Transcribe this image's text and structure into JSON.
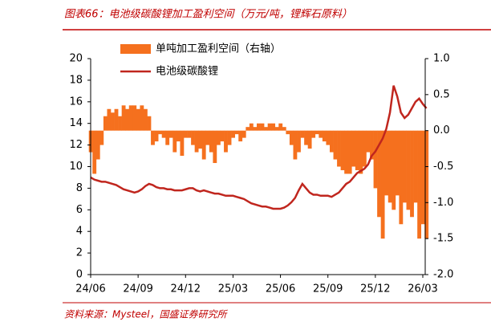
{
  "chart_data": {
    "type": "bar_line_dual_axis",
    "title": "图表66：电池级碳酸锂加工盈利空间（万元/吨，锂辉石原料）",
    "source": "资料来源：Mysteel，国盛证券研究所",
    "categories": [
      "24/06",
      null,
      null,
      null,
      null,
      null,
      null,
      null,
      null,
      null,
      null,
      null,
      null,
      "24/09",
      null,
      null,
      null,
      null,
      null,
      null,
      null,
      null,
      null,
      null,
      null,
      null,
      "24/12",
      null,
      null,
      null,
      null,
      null,
      null,
      null,
      null,
      null,
      null,
      null,
      null,
      "25/03",
      null,
      null,
      null,
      null,
      null,
      null,
      null,
      null,
      null,
      null,
      null,
      null,
      "25/06",
      null,
      null,
      null,
      null,
      null,
      null,
      null,
      null,
      null,
      null,
      null,
      null,
      "25/09",
      null,
      null,
      null,
      null,
      null,
      null,
      null,
      null,
      null,
      null,
      null,
      null,
      "25/12",
      null,
      null,
      null,
      null,
      null,
      null,
      null,
      null,
      null,
      null,
      null,
      null,
      "26/03",
      null
    ],
    "ylim": [
      0,
      20
    ],
    "yticks": [
      0,
      2,
      4,
      6,
      8,
      10,
      12,
      14,
      16,
      18,
      20
    ],
    "y2lim": [
      -2,
      1
    ],
    "y2ticks": [
      {
        "value": -2,
        "label": "-2.0"
      },
      -1.5,
      {
        "value": -1,
        "label": "-1.0"
      },
      -0.5,
      {
        "value": 0,
        "label": "0.0"
      },
      0.5,
      {
        "value": 1,
        "label": "1.0"
      }
    ],
    "legend": "top-left",
    "series": [
      {
        "name": "单吨加工盈利空间（右轴）",
        "type": "bar",
        "axis": "y2",
        "color": "#f5701e",
        "values": [
          -0.3,
          -0.6,
          -0.4,
          -0.2,
          0.2,
          0.3,
          0.25,
          0.3,
          0.2,
          0.35,
          0.3,
          0.35,
          0.35,
          0.3,
          0.35,
          0.3,
          0.2,
          -0.2,
          -0.15,
          -0.05,
          -0.1,
          -0.2,
          -0.1,
          -0.3,
          -0.15,
          -0.35,
          -0.1,
          -0.1,
          -0.2,
          -0.3,
          -0.25,
          -0.4,
          -0.2,
          -0.3,
          -0.45,
          -0.2,
          -0.15,
          -0.3,
          -0.2,
          -0.1,
          -0.05,
          -0.15,
          -0.1,
          0.05,
          0.1,
          0.05,
          0.1,
          0.1,
          0.05,
          0.1,
          0.1,
          0.05,
          0.1,
          0.05,
          -0.05,
          -0.2,
          -0.4,
          -0.3,
          -0.1,
          -0.2,
          -0.25,
          -0.1,
          -0.05,
          -0.1,
          -0.15,
          -0.2,
          -0.3,
          -0.4,
          -0.5,
          -0.55,
          -0.6,
          -0.6,
          -0.5,
          -0.55,
          -0.6,
          -0.5,
          -0.3,
          -0.4,
          -0.8,
          -1.2,
          -1.5,
          -0.9,
          -1.0,
          -1.1,
          -0.9,
          -1.3,
          -1.0,
          -1.1,
          -1.2,
          -1.0,
          -1.5,
          -1.3,
          -1.5
        ]
      },
      {
        "name": "电池级碳酸锂",
        "type": "line",
        "color": "#c0261e",
        "values": [
          9.0,
          8.8,
          8.7,
          8.6,
          8.6,
          8.5,
          8.4,
          8.3,
          8.1,
          7.9,
          7.8,
          7.7,
          7.6,
          7.7,
          7.9,
          8.2,
          8.4,
          8.3,
          8.1,
          8.0,
          8.0,
          7.9,
          7.9,
          7.8,
          7.8,
          7.8,
          7.9,
          8.0,
          8.0,
          7.8,
          7.7,
          7.8,
          7.7,
          7.6,
          7.5,
          7.5,
          7.4,
          7.3,
          7.3,
          7.3,
          7.2,
          7.1,
          7.0,
          6.8,
          6.6,
          6.5,
          6.4,
          6.3,
          6.3,
          6.2,
          6.1,
          6.1,
          6.1,
          6.2,
          6.4,
          6.7,
          7.1,
          7.8,
          8.4,
          8.0,
          7.6,
          7.4,
          7.4,
          7.3,
          7.3,
          7.3,
          7.2,
          7.4,
          7.6,
          8.0,
          8.4,
          8.6,
          9.0,
          9.4,
          9.6,
          9.8,
          10.2,
          11.0,
          11.4,
          12.0,
          12.6,
          13.5,
          15.0,
          17.5,
          16.5,
          15.0,
          14.5,
          14.8,
          15.4,
          16.0,
          16.3,
          15.8,
          15.4
        ]
      }
    ]
  }
}
